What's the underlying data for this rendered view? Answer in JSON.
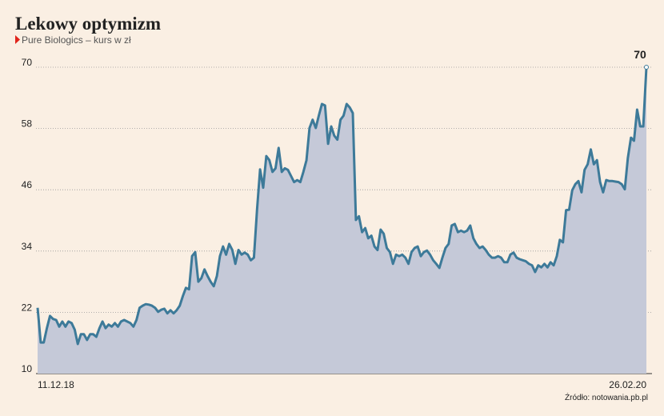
{
  "chart_data": {
    "type": "area",
    "title": "Lekowy optymizm",
    "subtitle": "Pure Biologics – kurs w zł",
    "source": "Źródło: notowania.pb.pl",
    "categories": [
      "11.12.18",
      null,
      null,
      null,
      null,
      null,
      null,
      null,
      null,
      null,
      null,
      null,
      null,
      null,
      null,
      null,
      null,
      null,
      null,
      null,
      null,
      null,
      null,
      null,
      null,
      null,
      null,
      null,
      null,
      null,
      null,
      null,
      null,
      null,
      null,
      null,
      null,
      null,
      null,
      null,
      null,
      null,
      null,
      null,
      null,
      null,
      null,
      null,
      null,
      null,
      null,
      null,
      null,
      null,
      null,
      null,
      null,
      null,
      null,
      null,
      null,
      null,
      null,
      null,
      null,
      null,
      null,
      null,
      null,
      null,
      null,
      null,
      null,
      null,
      null,
      null,
      null,
      null,
      null,
      null,
      null,
      null,
      null,
      null,
      null,
      null,
      null,
      null,
      null,
      null,
      null,
      null,
      null,
      null,
      null,
      null,
      null,
      null,
      null,
      null,
      null,
      null,
      null,
      null,
      null,
      null,
      null,
      null,
      null,
      null,
      null,
      null,
      null,
      null,
      null,
      null,
      null,
      null,
      null,
      null,
      null,
      null,
      null,
      null,
      null,
      null,
      null,
      null,
      null,
      null,
      null,
      null,
      null,
      null,
      null,
      null,
      null,
      null,
      null,
      null,
      null,
      null,
      null,
      null,
      null,
      null,
      null,
      null,
      null,
      null,
      null,
      null,
      null,
      null,
      null,
      null,
      null,
      null,
      null,
      null,
      null,
      null,
      null,
      null,
      null,
      null,
      null,
      null,
      null,
      null,
      null,
      null,
      null,
      null,
      null,
      null,
      null,
      null,
      null,
      null,
      null,
      null,
      null,
      null,
      null,
      null,
      null,
      null,
      null,
      null,
      null,
      null,
      null,
      null,
      null,
      null,
      null,
      "26.02.20"
    ],
    "series": [
      {
        "name": "Pure Biologics",
        "color": "#3d7a99",
        "fill": "#c5c9d8",
        "values": [
          22.9,
          16.1,
          16.1,
          18.9,
          21.3,
          20.7,
          20.5,
          19.2,
          20.2,
          19.2,
          20.2,
          19.9,
          18.6,
          15.8,
          17.7,
          17.7,
          16.6,
          17.7,
          17.7,
          17.2,
          18.9,
          20.2,
          18.9,
          19.6,
          19.2,
          19.9,
          19.2,
          20.2,
          20.5,
          20.2,
          19.9,
          19.2,
          20.5,
          22.9,
          23.3,
          23.6,
          23.5,
          23.3,
          22.9,
          22.1,
          22.5,
          22.7,
          21.8,
          22.4,
          21.8,
          22.4,
          23.3,
          25.2,
          26.8,
          26.5,
          33.0,
          33.8,
          28.0,
          28.7,
          30.4,
          29.1,
          28.0,
          27.1,
          29.1,
          33.0,
          34.9,
          33.3,
          35.4,
          34.2,
          31.5,
          34.2,
          33.3,
          33.7,
          33.3,
          32.2,
          32.7,
          42.1,
          50.0,
          46.4,
          52.6,
          51.8,
          49.5,
          50.2,
          54.2,
          49.5,
          50.2,
          49.9,
          48.7,
          47.5,
          47.9,
          47.5,
          49.5,
          51.8,
          58.1,
          59.7,
          58.1,
          60.5,
          62.8,
          62.5,
          55.0,
          58.4,
          56.6,
          55.8,
          59.7,
          60.5,
          62.8,
          62.1,
          61.0,
          40.1,
          40.8,
          37.7,
          38.5,
          36.5,
          37.0,
          34.9,
          34.2,
          38.2,
          37.4,
          34.6,
          33.8,
          31.5,
          33.3,
          33.0,
          33.3,
          32.7,
          31.5,
          33.8,
          34.6,
          34.9,
          33.0,
          33.8,
          34.1,
          33.3,
          32.2,
          31.5,
          30.7,
          32.7,
          34.6,
          35.4,
          39.0,
          39.3,
          37.7,
          38.0,
          37.7,
          38.0,
          39.0,
          36.5,
          35.4,
          34.6,
          34.9,
          34.2,
          33.3,
          32.7,
          32.7,
          33.0,
          32.7,
          31.8,
          31.8,
          33.3,
          33.7,
          32.7,
          32.4,
          32.2,
          32.0,
          31.5,
          31.2,
          29.9,
          31.2,
          30.8,
          31.5,
          30.8,
          31.8,
          31.2,
          33.0,
          36.2,
          35.7,
          42.0,
          42.1,
          45.9,
          47.1,
          47.7,
          45.5,
          49.9,
          51.0,
          53.9,
          51.0,
          51.8,
          47.5,
          45.5,
          47.9,
          47.7,
          47.7,
          47.6,
          47.5,
          47.1,
          46.1,
          52.2,
          56.2,
          55.6,
          61.7,
          58.4,
          58.4,
          70
        ]
      }
    ],
    "ylim": [
      10,
      70
    ],
    "yticks": [
      10,
      22,
      34,
      46,
      58,
      70
    ],
    "grid": true
  }
}
